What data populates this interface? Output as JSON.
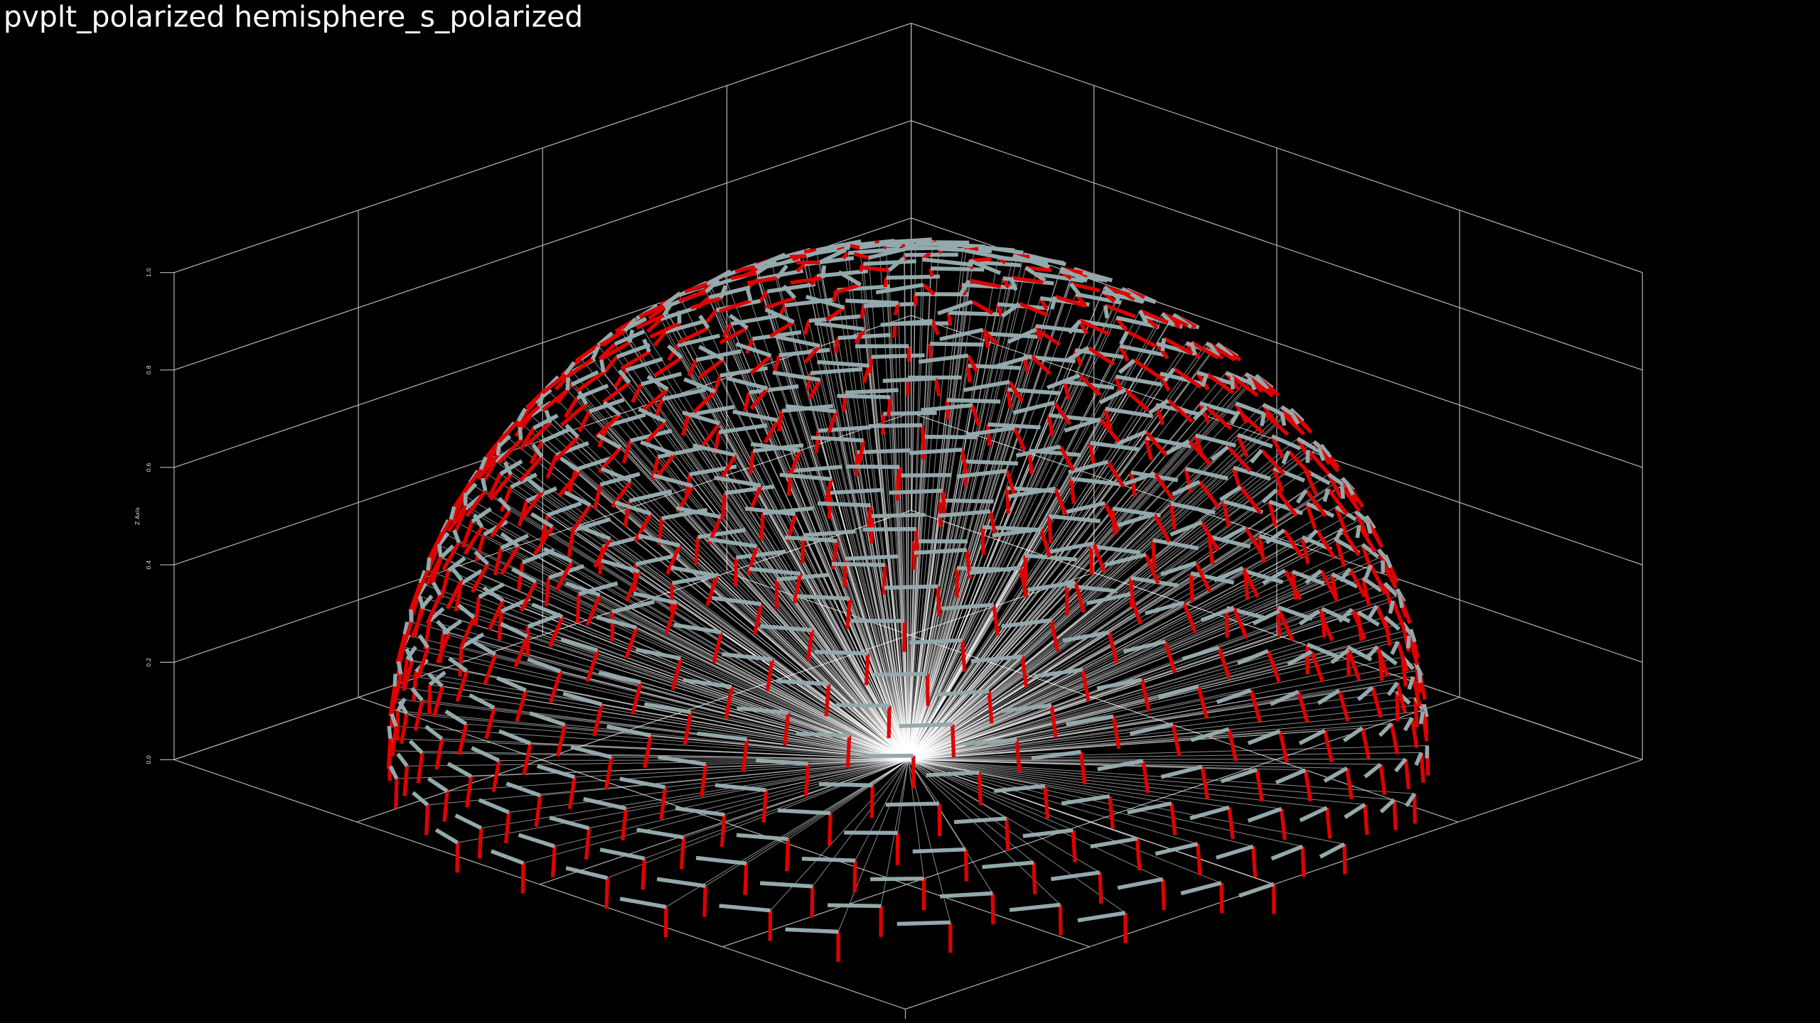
{
  "title": "pvplt_polarized hemisphere_s_polarized",
  "z_axis": {
    "label": "Z Axis",
    "ticks": [
      "0.0",
      "0.2",
      "0.4",
      "0.6",
      "0.8",
      "1.0"
    ]
  }
}
